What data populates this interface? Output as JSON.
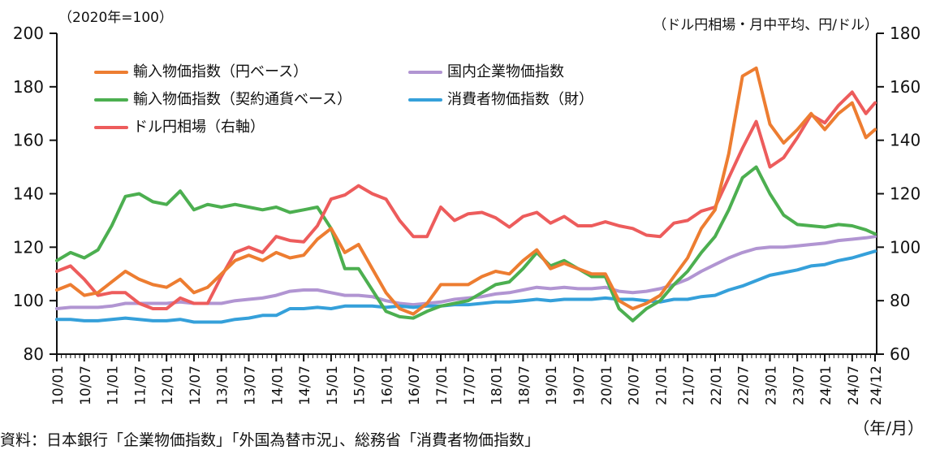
{
  "header": {
    "left_axis_note": "（2020年=100）",
    "right_axis_note": "（ドル円相場・月中平均、円/ドル）",
    "x_axis_note": "（年/月）"
  },
  "footer": {
    "source": "資料：日本銀行「企業物価指数」「外国為替市況」、総務省「消費者物価指数」"
  },
  "chart_data": {
    "type": "line",
    "title": "",
    "xlabel": "年/月",
    "ylabel_left": "2020年=100",
    "ylabel_right": "ドル円相場・月中平均、円/ドル",
    "grid": false,
    "legend_position": "top-left-inside",
    "x_tick_labels": [
      "10/01",
      "10/07",
      "11/01",
      "11/07",
      "12/01",
      "12/07",
      "13/01",
      "13/07",
      "14/01",
      "14/07",
      "15/01",
      "15/07",
      "16/01",
      "16/07",
      "17/01",
      "17/07",
      "18/01",
      "18/07",
      "19/01",
      "19/07",
      "20/01",
      "20/07",
      "21/01",
      "21/07",
      "22/01",
      "22/07",
      "23/01",
      "23/07",
      "24/01",
      "24/07",
      "24/12"
    ],
    "left_axis": {
      "min": 80,
      "max": 200,
      "ticks": [
        200,
        180,
        160,
        140,
        120,
        100,
        80
      ]
    },
    "right_axis": {
      "min": 60,
      "max": 180,
      "ticks": [
        180,
        160,
        140,
        120,
        100,
        80,
        60
      ]
    },
    "x": [
      "10/01",
      "10/04",
      "10/07",
      "10/10",
      "11/01",
      "11/04",
      "11/07",
      "11/10",
      "12/01",
      "12/04",
      "12/07",
      "12/10",
      "13/01",
      "13/04",
      "13/07",
      "13/10",
      "14/01",
      "14/04",
      "14/07",
      "14/10",
      "15/01",
      "15/04",
      "15/07",
      "15/10",
      "16/01",
      "16/04",
      "16/07",
      "16/10",
      "17/01",
      "17/04",
      "17/07",
      "17/10",
      "18/01",
      "18/04",
      "18/07",
      "18/10",
      "19/01",
      "19/04",
      "19/07",
      "19/10",
      "20/01",
      "20/04",
      "20/07",
      "20/10",
      "21/01",
      "21/04",
      "21/07",
      "21/10",
      "22/01",
      "22/04",
      "22/07",
      "22/10",
      "23/01",
      "23/04",
      "23/07",
      "23/10",
      "24/01",
      "24/04",
      "24/07",
      "24/10",
      "24/12"
    ],
    "series": [
      {
        "name": "輸入物価指数（円ベース）",
        "color": "#ED7D31",
        "axis": "left",
        "values": [
          104,
          106,
          102,
          103,
          107,
          111,
          108,
          106,
          105,
          108,
          103,
          105,
          110,
          115,
          117,
          115,
          118,
          116,
          117,
          123,
          127,
          118,
          121,
          112,
          103,
          97,
          95,
          99,
          106,
          106,
          106,
          109,
          111,
          110,
          115,
          119,
          112,
          114,
          112,
          110,
          110,
          100,
          97,
          99,
          102,
          109,
          116,
          127,
          134,
          155,
          184,
          187,
          166,
          159,
          164,
          170,
          164,
          170,
          174,
          161,
          164
        ]
      },
      {
        "name": "輸入物価指数（契約通貨ベース）",
        "color": "#4CAF50",
        "axis": "left",
        "values": [
          115,
          118,
          116,
          119,
          128,
          139,
          140,
          137,
          136,
          141,
          134,
          136,
          135,
          136,
          135,
          134,
          135,
          133,
          134,
          135,
          127,
          112,
          112,
          104,
          96,
          94,
          93.5,
          96,
          98,
          99,
          100,
          103,
          106,
          107,
          112,
          118,
          113,
          115,
          112,
          109,
          109,
          97,
          92.5,
          97,
          100,
          106,
          111,
          118,
          124,
          134,
          146,
          150,
          140,
          132,
          128.5,
          128,
          127.5,
          128.5,
          128,
          126.5,
          125
        ]
      },
      {
        "name": "ドル円相場（右軸）",
        "color": "#ED5C5C",
        "axis": "right",
        "values": [
          91,
          93,
          88,
          82,
          83,
          83,
          79,
          77,
          77,
          81,
          79,
          79,
          89,
          98,
          100,
          98,
          104,
          102.5,
          102,
          108,
          118,
          119.5,
          123,
          120,
          118,
          110,
          104,
          104,
          115,
          110,
          112.5,
          113,
          111,
          107.5,
          111.5,
          113,
          109,
          111.5,
          108,
          108,
          109.5,
          108,
          107,
          104.5,
          104,
          109,
          110,
          113.5,
          115,
          126,
          137,
          147,
          130,
          133.5,
          141,
          149.5,
          146.5,
          153,
          158,
          150,
          154
        ]
      },
      {
        "name": "国内企業物価指数",
        "color": "#B195D2",
        "axis": "left",
        "values": [
          97,
          97.5,
          97.5,
          97.5,
          98,
          99,
          99,
          99,
          99,
          99.5,
          99,
          99,
          99,
          100,
          100.5,
          101,
          102,
          103.5,
          104,
          104,
          103,
          102,
          102,
          101.5,
          100,
          99,
          98.5,
          99,
          99.5,
          100.5,
          101,
          101.5,
          102.5,
          103,
          104,
          105,
          104.5,
          105,
          104.5,
          104.5,
          105,
          103.5,
          103,
          103.5,
          104.5,
          106,
          108,
          111,
          113.5,
          116,
          118,
          119.5,
          120,
          120,
          120.5,
          121,
          121.5,
          122.5,
          123,
          123.5,
          124
        ]
      },
      {
        "name": "消費者物価指数（財）",
        "color": "#35A0DA",
        "axis": "left",
        "values": [
          93,
          93,
          92.5,
          92.5,
          93,
          93.5,
          93,
          92.5,
          92.5,
          93,
          92,
          92,
          92,
          93,
          93.5,
          94.5,
          94.5,
          97,
          97,
          97.5,
          97,
          98,
          98,
          98,
          97.5,
          98,
          97.5,
          98,
          98,
          98.5,
          98.5,
          99,
          99.5,
          99.5,
          100,
          100.5,
          100,
          100.5,
          100.5,
          100.5,
          101,
          100.5,
          100.5,
          100,
          99.5,
          100.5,
          100.5,
          101.5,
          102,
          104,
          105.5,
          107.5,
          109.5,
          110.5,
          111.5,
          113,
          113.5,
          115,
          116,
          117.5,
          118.5
        ]
      }
    ]
  }
}
